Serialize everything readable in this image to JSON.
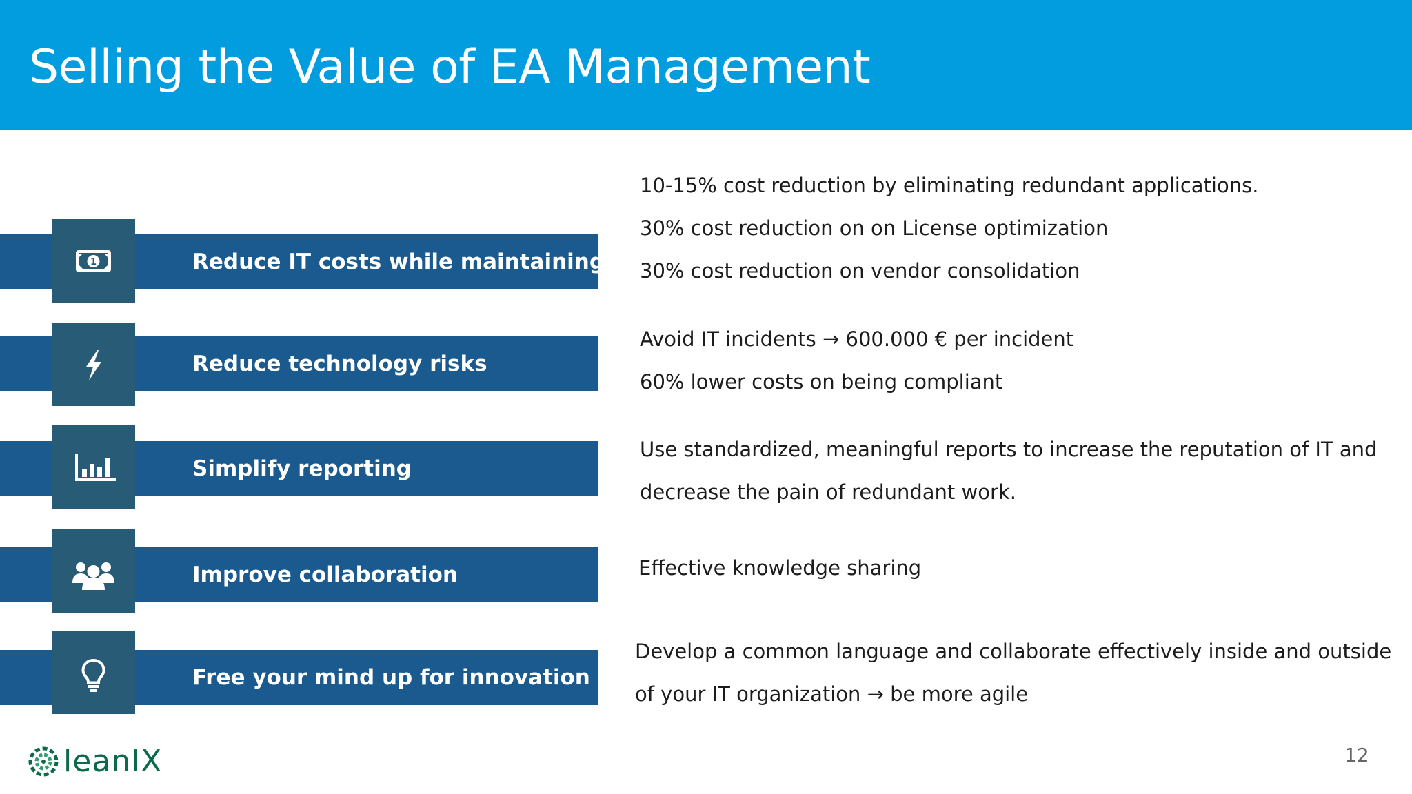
{
  "slide": {
    "title": "Selling the Value of EA Management",
    "page_number": "12"
  },
  "benefits": [
    {
      "label": "Reduce IT costs while maintaining qu",
      "icon": "money-icon"
    },
    {
      "label": "Reduce technology risks",
      "icon": "lightning-icon"
    },
    {
      "label": "Simplify reporting",
      "icon": "bar-chart-icon"
    },
    {
      "label": "Improve collaboration",
      "icon": "team-icon"
    },
    {
      "label": "Free your mind up for innovation",
      "icon": "lightbulb-icon"
    }
  ],
  "details": {
    "cost": [
      "10-15% cost reduction by eliminating redundant applications.",
      "30% cost reduction on on License optimization",
      "30% cost reduction on vendor consolidation"
    ],
    "risk": [
      "Avoid IT incidents → 600.000 € per incident",
      "60% lower costs on being compliant"
    ],
    "reporting": [
      "Use standardized, meaningful reports to increase the reputation of IT and",
      "decrease the pain of redundant work."
    ],
    "collaboration": [
      "Effective knowledge sharing"
    ],
    "innovation": [
      "Develop a common language and collaborate effectively inside and outside",
      "of your IT organization → be more agile"
    ]
  },
  "logo": {
    "text": "leanIX"
  },
  "colors": {
    "header": "#029ddf",
    "band": "#1a5a8e",
    "tile": "#275b76",
    "logo": "#0c6a4a"
  }
}
